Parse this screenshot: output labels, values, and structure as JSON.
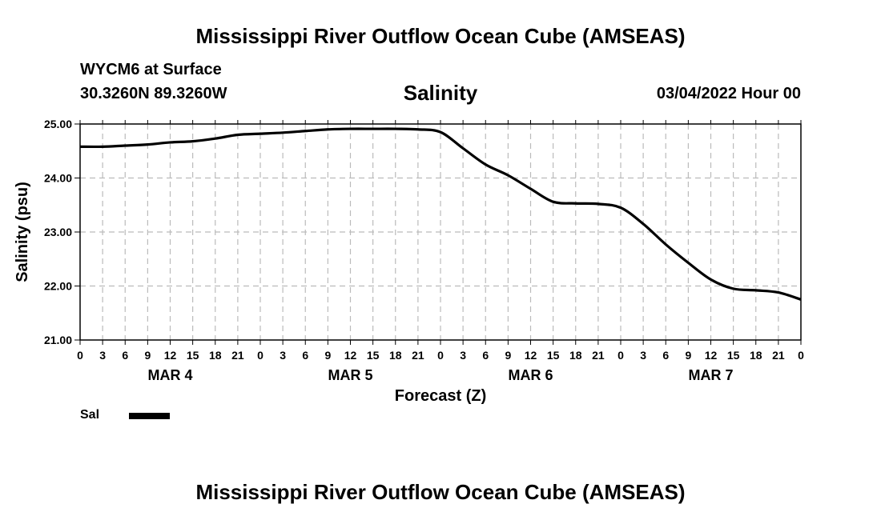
{
  "header": {
    "title": "Mississippi River Outflow Ocean Cube (AMSEAS)",
    "station": "WYCM6 at Surface",
    "coordinates": "30.3260N  89.3260W",
    "parameter": "Salinity",
    "datetime": "03/04/2022 Hour 00"
  },
  "footer": {
    "title": "Mississippi River Outflow Ocean Cube (AMSEAS)"
  },
  "legend": {
    "label": "Sal",
    "color": "#000000"
  },
  "chart_data": {
    "type": "line",
    "title": "Salinity",
    "xlabel": "Forecast (Z)",
    "ylabel": "Salinity (psu)",
    "ylim": [
      21.0,
      25.0
    ],
    "xlim": [
      0,
      96
    ],
    "x_unit": "hours from 03/04/2022 00Z",
    "y_ticks": [
      "25.00",
      "24.00",
      "23.00",
      "22.00",
      "21.00"
    ],
    "y_tick_values": [
      25,
      24,
      23,
      22,
      21
    ],
    "x_tick_hours": [
      0,
      3,
      6,
      9,
      12,
      15,
      18,
      21,
      24,
      27,
      30,
      33,
      36,
      39,
      42,
      45,
      48,
      51,
      54,
      57,
      60,
      63,
      66,
      69,
      72,
      75,
      78,
      81,
      84,
      87,
      90,
      93,
      96
    ],
    "x_tick_labels": [
      "0",
      "3",
      "6",
      "9",
      "12",
      "15",
      "18",
      "21",
      "0",
      "3",
      "6",
      "9",
      "12",
      "15",
      "18",
      "21",
      "0",
      "3",
      "6",
      "9",
      "12",
      "15",
      "18",
      "21",
      "0",
      "3",
      "6",
      "9",
      "12",
      "15",
      "18",
      "21",
      "0"
    ],
    "day_labels": [
      {
        "label": "MAR 4",
        "hour": 12
      },
      {
        "label": "MAR 5",
        "hour": 36
      },
      {
        "label": "MAR 6",
        "hour": 60
      },
      {
        "label": "MAR 7",
        "hour": 84
      }
    ],
    "grid": true,
    "series": [
      {
        "name": "Sal",
        "x": [
          0,
          3,
          6,
          9,
          12,
          15,
          18,
          21,
          24,
          27,
          30,
          33,
          36,
          39,
          42,
          45,
          48,
          51,
          54,
          57,
          60,
          63,
          66,
          69,
          72,
          75,
          78,
          81,
          84,
          87,
          90,
          93,
          96
        ],
        "values": [
          24.58,
          24.58,
          24.6,
          24.62,
          24.66,
          24.68,
          24.73,
          24.8,
          24.82,
          24.84,
          24.87,
          24.9,
          24.91,
          24.91,
          24.91,
          24.9,
          24.85,
          24.55,
          24.25,
          24.05,
          23.8,
          23.56,
          23.53,
          23.52,
          23.45,
          23.15,
          22.77,
          22.43,
          22.12,
          21.95,
          21.92,
          21.88,
          21.75
        ]
      }
    ]
  }
}
